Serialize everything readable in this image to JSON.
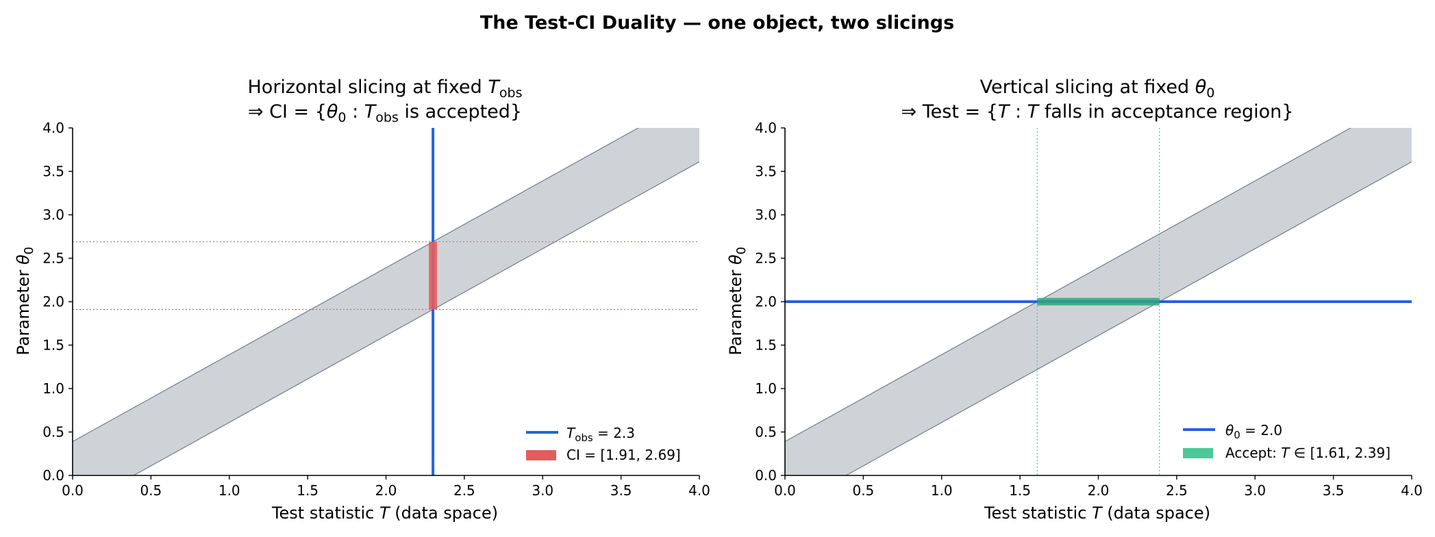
{
  "figure": {
    "suptitle": "The Test-CI Duality — one object, two slicings"
  },
  "colors": {
    "band_fill": "#cfd3d8",
    "band_edge": "#7b8290",
    "blue": "#2563d9",
    "red": "#e35d5d",
    "red_dotted": "#e36b5b",
    "green": "#4cc99a",
    "green_dark": "#2fa57d",
    "teal_dotted": "#52c7b0"
  },
  "chart_data": [
    {
      "type": "area",
      "title_line1": "Horizontal slicing at fixed T_obs",
      "title_line2": "⇒ CI = {θ0 : T_obs is accepted}",
      "xlabel": "Test statistic T (data space)",
      "ylabel": "Parameter θ0",
      "xlim": [
        0,
        4
      ],
      "ylim": [
        0,
        4
      ],
      "xticks": [
        "0.0",
        "0.5",
        "1.0",
        "1.5",
        "2.0",
        "2.5",
        "3.0",
        "3.5",
        "4.0"
      ],
      "yticks": [
        "0.0",
        "0.5",
        "1.0",
        "1.5",
        "2.0",
        "2.5",
        "3.0",
        "3.5",
        "4.0"
      ],
      "acceptance_band": {
        "slope": 1,
        "lower_intercept": -0.39,
        "upper_intercept": 0.39
      },
      "vertical_line": {
        "x": 2.3
      },
      "ci_segment": {
        "x": 2.3,
        "y_low": 1.91,
        "y_high": 2.69
      },
      "reference_lines_y": [
        1.91,
        2.69
      ],
      "legend": [
        {
          "label_main": "T",
          "label_sub": "obs",
          "label_rest": " = 2.3",
          "style": "line"
        },
        {
          "label": "CI = [1.91, 2.69]",
          "style": "patch"
        }
      ],
      "legend_position": "lower right",
      "grid": false
    },
    {
      "type": "area",
      "title_line1": "Vertical slicing at fixed θ0",
      "title_line2": "⇒ Test = {T : T falls in acceptance region}",
      "xlabel": "Test statistic T (data space)",
      "ylabel": "Parameter θ0",
      "xlim": [
        0,
        4
      ],
      "ylim": [
        0,
        4
      ],
      "xticks": [
        "0.0",
        "0.5",
        "1.0",
        "1.5",
        "2.0",
        "2.5",
        "3.0",
        "3.5",
        "4.0"
      ],
      "yticks": [
        "0.0",
        "0.5",
        "1.0",
        "1.5",
        "2.0",
        "2.5",
        "3.0",
        "3.5",
        "4.0"
      ],
      "acceptance_band": {
        "slope": 1,
        "lower_intercept": -0.39,
        "upper_intercept": 0.39
      },
      "horizontal_line": {
        "y": 2.0
      },
      "accept_segment": {
        "y": 2.0,
        "x_low": 1.61,
        "x_high": 2.39
      },
      "reference_lines_x": [
        1.61,
        2.39
      ],
      "legend": [
        {
          "label_main": "θ",
          "label_sub": "0",
          "label_rest": " = 2.0",
          "style": "line"
        },
        {
          "label": "Accept: T ∈ [1.61, 2.39]",
          "style": "patch"
        }
      ],
      "legend_position": "lower right",
      "grid": false
    }
  ]
}
